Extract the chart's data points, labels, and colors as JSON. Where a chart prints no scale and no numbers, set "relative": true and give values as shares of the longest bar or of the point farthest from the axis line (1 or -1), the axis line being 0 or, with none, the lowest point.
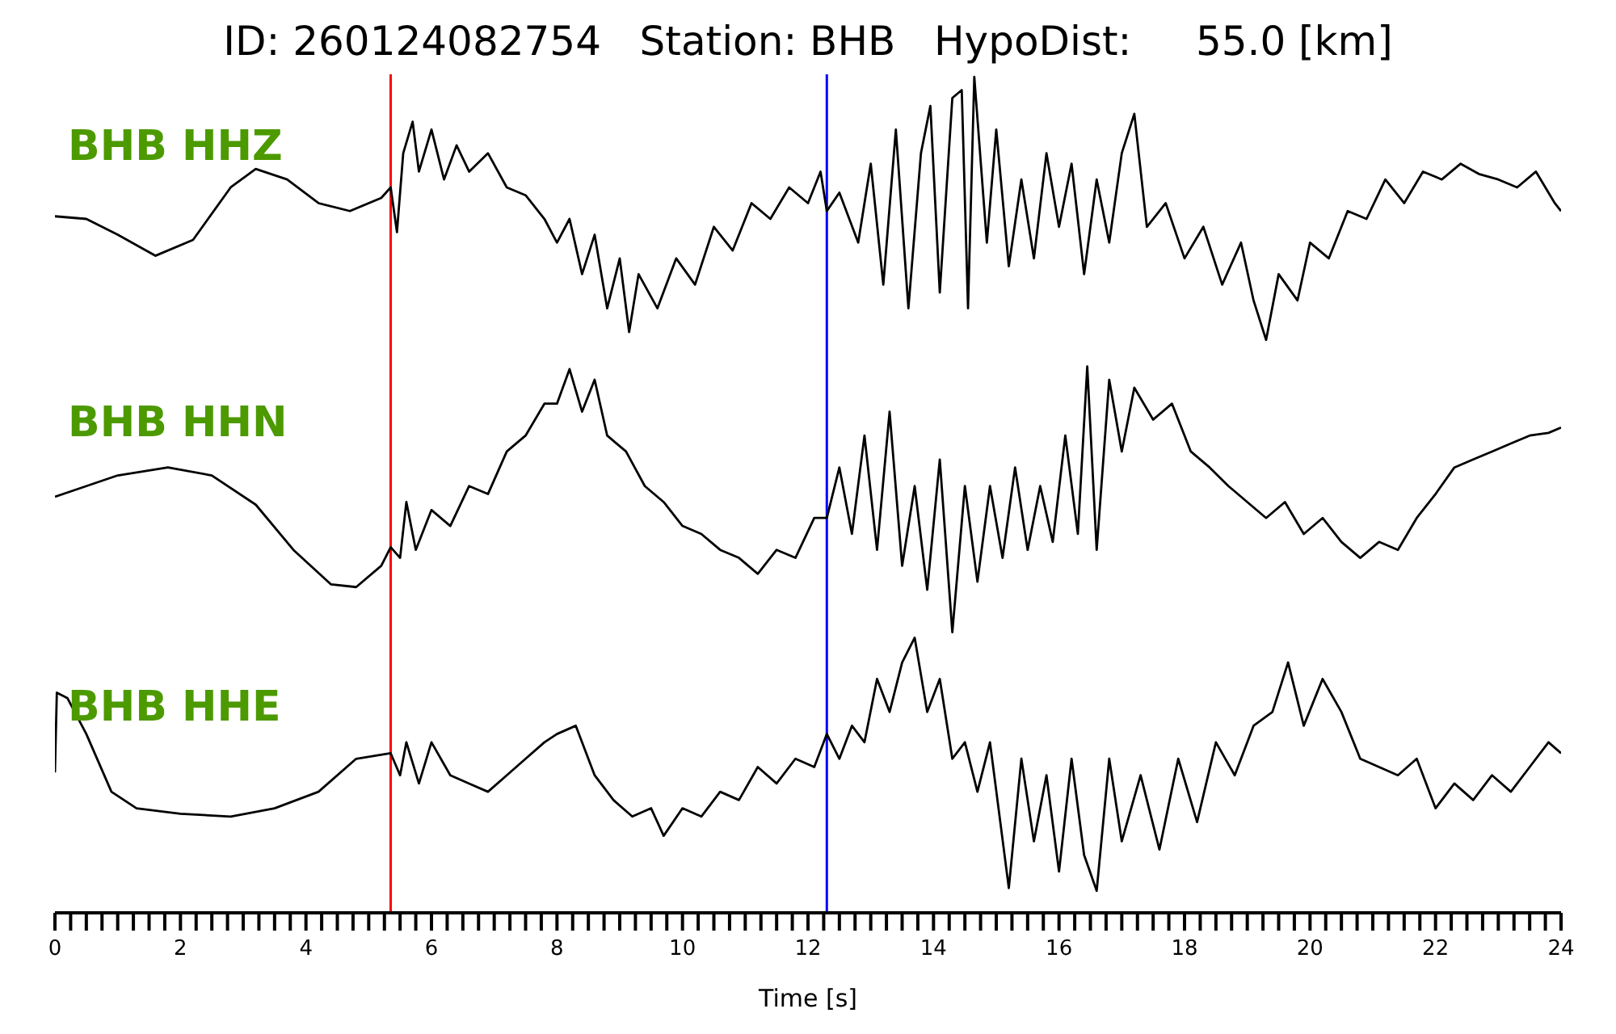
{
  "chart_data": [
    {
      "type": "line",
      "title": "ID: 260124082754   Station: BHB   HypoDist:     55.0 [km]",
      "relative": true,
      "xlim": [
        0,
        24
      ],
      "series": [
        {
          "name": "BHB HHZ",
          "color": "#000000",
          "x": [
            0,
            0.5,
            1,
            1.6,
            2.2,
            2.8,
            3.2,
            3.7,
            4.2,
            4.7,
            5.2,
            5.35,
            5.45,
            5.55,
            5.7,
            5.8,
            6.0,
            6.2,
            6.4,
            6.6,
            6.9,
            7.2,
            7.5,
            7.8,
            8.0,
            8.2,
            8.4,
            8.6,
            8.8,
            9.0,
            9.15,
            9.3,
            9.6,
            9.9,
            10.2,
            10.5,
            10.8,
            11.1,
            11.4,
            11.7,
            12.0,
            12.2,
            12.3,
            12.5,
            12.8,
            13.0,
            13.2,
            13.4,
            13.6,
            13.8,
            13.95,
            14.1,
            14.3,
            14.45,
            14.55,
            14.65,
            14.85,
            15.0,
            15.2,
            15.4,
            15.6,
            15.8,
            16.0,
            16.2,
            16.4,
            16.6,
            16.8,
            17.0,
            17.2,
            17.4,
            17.7,
            18.0,
            18.3,
            18.6,
            18.9,
            19.1,
            19.3,
            19.5,
            19.8,
            20.0,
            20.3,
            20.6,
            20.9,
            21.2,
            21.5,
            21.8,
            22.1,
            22.4,
            22.7,
            23.0,
            23.3,
            23.6,
            23.9,
            24
          ],
          "values": [
            0.47,
            0.46,
            0.4,
            0.32,
            0.38,
            0.58,
            0.65,
            0.61,
            0.52,
            0.49,
            0.54,
            0.58,
            0.41,
            0.71,
            0.83,
            0.64,
            0.8,
            0.61,
            0.74,
            0.64,
            0.71,
            0.58,
            0.55,
            0.46,
            0.37,
            0.46,
            0.25,
            0.4,
            0.12,
            0.31,
            0.03,
            0.25,
            0.12,
            0.31,
            0.21,
            0.43,
            0.34,
            0.52,
            0.46,
            0.58,
            0.52,
            0.64,
            0.49,
            0.56,
            0.37,
            0.67,
            0.21,
            0.8,
            0.12,
            0.71,
            0.89,
            0.18,
            0.92,
            0.95,
            0.12,
            1.0,
            0.37,
            0.8,
            0.28,
            0.61,
            0.31,
            0.71,
            0.43,
            0.67,
            0.25,
            0.61,
            0.37,
            0.71,
            0.86,
            0.43,
            0.52,
            0.31,
            0.43,
            0.21,
            0.37,
            0.15,
            0,
            0.25,
            0.15,
            0.37,
            0.31,
            0.49,
            0.46,
            0.61,
            0.52,
            0.64,
            0.61,
            0.67,
            0.63,
            0.61,
            0.58,
            0.64,
            0.52,
            0.49
          ]
        }
      ],
      "ref_lines": [
        {
          "axis": "x",
          "value": 5.35,
          "color": "#ff0000"
        },
        {
          "axis": "x",
          "value": 12.3,
          "color": "#0000ff"
        }
      ]
    },
    {
      "type": "line",
      "relative": true,
      "xlim": [
        0,
        24
      ],
      "series": [
        {
          "name": "BHB HHN",
          "color": "#000000",
          "x": [
            0,
            0.5,
            1,
            1.8,
            2.5,
            3.2,
            3.8,
            4.4,
            4.8,
            5.2,
            5.35,
            5.5,
            5.6,
            5.75,
            6.0,
            6.3,
            6.6,
            6.9,
            7.2,
            7.5,
            7.8,
            8.0,
            8.2,
            8.4,
            8.6,
            8.8,
            9.1,
            9.4,
            9.7,
            10.0,
            10.3,
            10.6,
            10.9,
            11.2,
            11.5,
            11.8,
            12.1,
            12.3,
            12.5,
            12.7,
            12.9,
            13.1,
            13.3,
            13.5,
            13.7,
            13.9,
            14.1,
            14.3,
            14.5,
            14.7,
            14.9,
            15.1,
            15.3,
            15.5,
            15.7,
            15.9,
            16.1,
            16.3,
            16.45,
            16.6,
            16.8,
            17.0,
            17.2,
            17.5,
            17.8,
            18.1,
            18.4,
            18.7,
            19.0,
            19.3,
            19.6,
            19.9,
            20.2,
            20.5,
            20.8,
            21.1,
            21.4,
            21.7,
            22.0,
            22.3,
            22.6,
            22.9,
            23.2,
            23.5,
            23.8,
            24
          ],
          "values": [
            0.51,
            0.55,
            0.59,
            0.62,
            0.59,
            0.48,
            0.31,
            0.18,
            0.17,
            0.25,
            0.32,
            0.28,
            0.49,
            0.31,
            0.46,
            0.4,
            0.55,
            0.52,
            0.68,
            0.74,
            0.86,
            0.86,
            0.99,
            0.83,
            0.95,
            0.74,
            0.68,
            0.55,
            0.49,
            0.4,
            0.37,
            0.31,
            0.28,
            0.22,
            0.31,
            0.28,
            0.43,
            0.43,
            0.62,
            0.37,
            0.74,
            0.31,
            0.83,
            0.25,
            0.55,
            0.16,
            0.65,
            0,
            0.55,
            0.19,
            0.55,
            0.28,
            0.62,
            0.31,
            0.55,
            0.34,
            0.74,
            0.37,
            1,
            0.31,
            0.95,
            0.68,
            0.92,
            0.8,
            0.86,
            0.68,
            0.62,
            0.55,
            0.49,
            0.43,
            0.49,
            0.37,
            0.43,
            0.34,
            0.28,
            0.34,
            0.31,
            0.43,
            0.52,
            0.62,
            0.65,
            0.68,
            0.71,
            0.74,
            0.75,
            0.77
          ]
        }
      ],
      "ref_lines": [
        {
          "axis": "x",
          "value": 5.35,
          "color": "#ff0000"
        },
        {
          "axis": "x",
          "value": 12.3,
          "color": "#0000ff"
        }
      ]
    },
    {
      "type": "line",
      "relative": true,
      "xlabel": "Time [s]",
      "xlim": [
        0,
        24
      ],
      "xticks": [
        0,
        {
          "value": 0.25,
          "label": null
        },
        {
          "value": 0.5,
          "label": null
        },
        {
          "value": 0.75,
          "label": null
        },
        {
          "value": 1,
          "label": null
        },
        {
          "value": 1.25,
          "label": null
        },
        {
          "value": 1.5,
          "label": null
        },
        {
          "value": 1.75,
          "label": null
        },
        2,
        {
          "value": 2.25,
          "label": null
        },
        {
          "value": 2.5,
          "label": null
        },
        {
          "value": 2.75,
          "label": null
        },
        {
          "value": 3,
          "label": null
        },
        {
          "value": 3.25,
          "label": null
        },
        {
          "value": 3.5,
          "label": null
        },
        {
          "value": 3.75,
          "label": null
        },
        4,
        {
          "value": 4.25,
          "label": null
        },
        {
          "value": 4.5,
          "label": null
        },
        {
          "value": 4.75,
          "label": null
        },
        {
          "value": 5,
          "label": null
        },
        {
          "value": 5.25,
          "label": null
        },
        {
          "value": 5.5,
          "label": null
        },
        {
          "value": 5.75,
          "label": null
        },
        6,
        {
          "value": 6.25,
          "label": null
        },
        {
          "value": 6.5,
          "label": null
        },
        {
          "value": 6.75,
          "label": null
        },
        {
          "value": 7,
          "label": null
        },
        {
          "value": 7.25,
          "label": null
        },
        {
          "value": 7.5,
          "label": null
        },
        {
          "value": 7.75,
          "label": null
        },
        8,
        {
          "value": 8.25,
          "label": null
        },
        {
          "value": 8.5,
          "label": null
        },
        {
          "value": 8.75,
          "label": null
        },
        {
          "value": 9,
          "label": null
        },
        {
          "value": 9.25,
          "label": null
        },
        {
          "value": 9.5,
          "label": null
        },
        {
          "value": 9.75,
          "label": null
        },
        10,
        {
          "value": 10.25,
          "label": null
        },
        {
          "value": 10.5,
          "label": null
        },
        {
          "value": 10.75,
          "label": null
        },
        {
          "value": 11,
          "label": null
        },
        {
          "value": 11.25,
          "label": null
        },
        {
          "value": 11.5,
          "label": null
        },
        {
          "value": 11.75,
          "label": null
        },
        12,
        {
          "value": 12.25,
          "label": null
        },
        {
          "value": 12.5,
          "label": null
        },
        {
          "value": 12.75,
          "label": null
        },
        {
          "value": 13,
          "label": null
        },
        {
          "value": 13.25,
          "label": null
        },
        {
          "value": 13.5,
          "label": null
        },
        {
          "value": 13.75,
          "label": null
        },
        14,
        {
          "value": 14.25,
          "label": null
        },
        {
          "value": 14.5,
          "label": null
        },
        {
          "value": 14.75,
          "label": null
        },
        {
          "value": 15,
          "label": null
        },
        {
          "value": 15.25,
          "label": null
        },
        {
          "value": 15.5,
          "label": null
        },
        {
          "value": 15.75,
          "label": null
        },
        16,
        {
          "value": 16.25,
          "label": null
        },
        {
          "value": 16.5,
          "label": null
        },
        {
          "value": 16.75,
          "label": null
        },
        {
          "value": 17,
          "label": null
        },
        {
          "value": 17.25,
          "label": null
        },
        {
          "value": 17.5,
          "label": null
        },
        {
          "value": 17.75,
          "label": null
        },
        18,
        {
          "value": 18.25,
          "label": null
        },
        {
          "value": 18.5,
          "label": null
        },
        {
          "value": 18.75,
          "label": null
        },
        {
          "value": 19,
          "label": null
        },
        {
          "value": 19.25,
          "label": null
        },
        {
          "value": 19.5,
          "label": null
        },
        {
          "value": 19.75,
          "label": null
        },
        20,
        {
          "value": 20.25,
          "label": null
        },
        {
          "value": 20.5,
          "label": null
        },
        {
          "value": 20.75,
          "label": null
        },
        {
          "value": 21,
          "label": null
        },
        {
          "value": 21.25,
          "label": null
        },
        {
          "value": 21.5,
          "label": null
        },
        {
          "value": 21.75,
          "label": null
        },
        22,
        {
          "value": 22.25,
          "label": null
        },
        {
          "value": 22.5,
          "label": null
        },
        {
          "value": 22.75,
          "label": null
        },
        {
          "value": 23,
          "label": null
        },
        {
          "value": 23.25,
          "label": null
        },
        {
          "value": 23.5,
          "label": null
        },
        {
          "value": 23.75,
          "label": null
        },
        24
      ],
      "series": [
        {
          "name": "BHB HHE",
          "color": "#000000",
          "x": [
            0,
            0.03,
            0.2,
            0.5,
            0.9,
            1.3,
            2,
            2.8,
            3.5,
            4.2,
            4.8,
            5.35,
            5.5,
            5.6,
            5.8,
            6.0,
            6.3,
            6.6,
            6.9,
            7.2,
            7.5,
            7.8,
            8.0,
            8.3,
            8.6,
            8.9,
            9.2,
            9.5,
            9.7,
            10.0,
            10.3,
            10.6,
            10.9,
            11.2,
            11.5,
            11.8,
            12.1,
            12.3,
            12.5,
            12.7,
            12.9,
            13.1,
            13.3,
            13.5,
            13.7,
            13.9,
            14.1,
            14.3,
            14.5,
            14.7,
            14.9,
            15.2,
            15.4,
            15.6,
            15.8,
            16.0,
            16.2,
            16.4,
            16.6,
            16.8,
            17.0,
            17.3,
            17.6,
            17.9,
            18.2,
            18.5,
            18.8,
            19.1,
            19.4,
            19.65,
            19.9,
            20.2,
            20.5,
            20.8,
            21.1,
            21.4,
            21.7,
            22.0,
            22.3,
            22.6,
            22.9,
            23.2,
            23.5,
            23.8,
            24
          ],
          "values": [
            0.51,
            0.8,
            0.78,
            0.65,
            0.44,
            0.38,
            0.36,
            0.35,
            0.38,
            0.44,
            0.56,
            0.58,
            0.5,
            0.62,
            0.47,
            0.62,
            0.5,
            0.47,
            0.44,
            0.5,
            0.56,
            0.62,
            0.65,
            0.68,
            0.5,
            0.41,
            0.35,
            0.38,
            0.28,
            0.38,
            0.35,
            0.44,
            0.41,
            0.53,
            0.47,
            0.56,
            0.53,
            0.65,
            0.56,
            0.68,
            0.62,
            0.85,
            0.73,
            0.91,
            1,
            0.73,
            0.85,
            0.56,
            0.62,
            0.44,
            0.62,
            0.09,
            0.56,
            0.26,
            0.5,
            0.15,
            0.56,
            0.21,
            0.08,
            0.56,
            0.26,
            0.5,
            0.23,
            0.56,
            0.33,
            0.62,
            0.5,
            0.68,
            0.73,
            0.91,
            0.68,
            0.85,
            0.73,
            0.56,
            0.53,
            0.5,
            0.56,
            0.38,
            0.47,
            0.41,
            0.5,
            0.44,
            0.53,
            0.62,
            0.58
          ]
        }
      ],
      "ref_lines": [
        {
          "axis": "x",
          "value": 5.35,
          "color": "#ff0000"
        },
        {
          "axis": "x",
          "value": 12.3,
          "color": "#0000ff"
        }
      ]
    }
  ]
}
